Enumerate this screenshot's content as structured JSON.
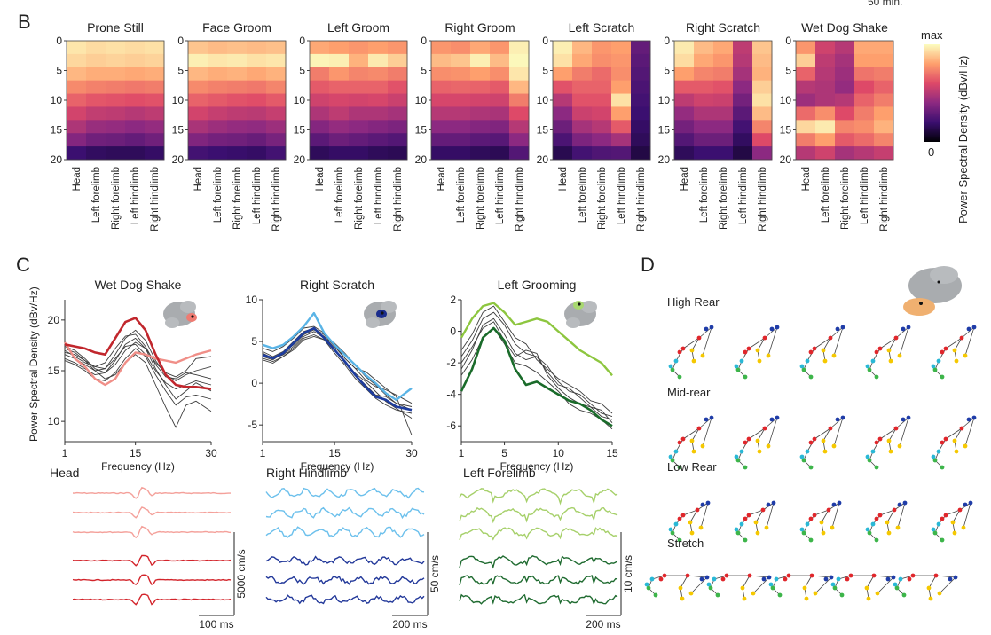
{
  "top_clip_text": "50 min.",
  "panel_letters": {
    "b": "B",
    "c": "C",
    "d": "D"
  },
  "panel_b": {
    "row_labels": [
      "Head",
      "Left forelimb",
      "Right forelimb",
      "Left hindlimb",
      "Right hindlimb"
    ],
    "y_ticks": [
      "0",
      "5",
      "10",
      "15",
      "20"
    ],
    "colorbar": {
      "max_label": "max",
      "min_label": "0",
      "axis_label": "Power Spectral Density (dBv/Hz)",
      "stops": [
        "#000004",
        "#3b0f70",
        "#8c2981",
        "#de4968",
        "#fe9f6d",
        "#fcfdbf"
      ]
    },
    "heatmaps": [
      {
        "title": "Prone Still",
        "cols": [
          [
            0.95,
            0.92,
            0.85,
            0.75,
            0.66,
            0.57,
            0.48,
            0.38,
            0.2
          ],
          [
            0.93,
            0.9,
            0.83,
            0.73,
            0.63,
            0.53,
            0.43,
            0.33,
            0.17
          ],
          [
            0.94,
            0.91,
            0.83,
            0.72,
            0.62,
            0.52,
            0.42,
            0.32,
            0.16
          ],
          [
            0.93,
            0.9,
            0.82,
            0.71,
            0.61,
            0.5,
            0.4,
            0.3,
            0.16
          ],
          [
            0.94,
            0.91,
            0.83,
            0.72,
            0.62,
            0.52,
            0.42,
            0.33,
            0.18
          ]
        ]
      },
      {
        "title": "Face Groom",
        "cols": [
          [
            0.88,
            0.97,
            0.85,
            0.75,
            0.66,
            0.57,
            0.47,
            0.37,
            0.22
          ],
          [
            0.86,
            0.95,
            0.83,
            0.73,
            0.64,
            0.54,
            0.44,
            0.34,
            0.2
          ],
          [
            0.87,
            0.96,
            0.84,
            0.72,
            0.62,
            0.52,
            0.42,
            0.33,
            0.19
          ],
          [
            0.86,
            0.94,
            0.82,
            0.71,
            0.61,
            0.51,
            0.41,
            0.31,
            0.18
          ],
          [
            0.87,
            0.95,
            0.84,
            0.74,
            0.64,
            0.54,
            0.44,
            0.35,
            0.22
          ]
        ]
      },
      {
        "title": "Left Groom",
        "cols": [
          [
            0.82,
            0.98,
            0.72,
            0.64,
            0.56,
            0.48,
            0.38,
            0.28,
            0.16
          ],
          [
            0.8,
            0.97,
            0.78,
            0.66,
            0.58,
            0.52,
            0.42,
            0.32,
            0.18
          ],
          [
            0.78,
            0.84,
            0.74,
            0.66,
            0.57,
            0.48,
            0.4,
            0.3,
            0.18
          ],
          [
            0.8,
            0.96,
            0.75,
            0.66,
            0.58,
            0.48,
            0.38,
            0.28,
            0.16
          ],
          [
            0.78,
            0.9,
            0.72,
            0.62,
            0.55,
            0.46,
            0.36,
            0.26,
            0.15
          ]
        ]
      },
      {
        "title": "Right Groom",
        "cols": [
          [
            0.78,
            0.86,
            0.76,
            0.66,
            0.58,
            0.5,
            0.4,
            0.3,
            0.18
          ],
          [
            0.76,
            0.88,
            0.77,
            0.67,
            0.58,
            0.5,
            0.4,
            0.3,
            0.18
          ],
          [
            0.82,
            0.97,
            0.8,
            0.66,
            0.57,
            0.48,
            0.38,
            0.28,
            0.16
          ],
          [
            0.78,
            0.86,
            0.76,
            0.64,
            0.56,
            0.47,
            0.37,
            0.27,
            0.15
          ],
          [
            0.97,
            0.99,
            0.95,
            0.85,
            0.72,
            0.6,
            0.5,
            0.4,
            0.26
          ]
        ]
      },
      {
        "title": "Left Scratch",
        "cols": [
          [
            0.97,
            0.94,
            0.8,
            0.62,
            0.5,
            0.4,
            0.32,
            0.24,
            0.14
          ],
          [
            0.85,
            0.82,
            0.72,
            0.66,
            0.62,
            0.55,
            0.46,
            0.36,
            0.22
          ],
          [
            0.78,
            0.76,
            0.68,
            0.66,
            0.62,
            0.57,
            0.5,
            0.4,
            0.25
          ],
          [
            0.8,
            0.78,
            0.76,
            0.8,
            0.94,
            0.8,
            0.64,
            0.46,
            0.26
          ],
          [
            0.3,
            0.28,
            0.26,
            0.24,
            0.22,
            0.2,
            0.18,
            0.16,
            0.12
          ]
        ]
      },
      {
        "title": "Right Scratch",
        "cols": [
          [
            0.96,
            0.93,
            0.8,
            0.64,
            0.52,
            0.42,
            0.34,
            0.26,
            0.16
          ],
          [
            0.86,
            0.82,
            0.74,
            0.64,
            0.56,
            0.48,
            0.4,
            0.32,
            0.2
          ],
          [
            0.82,
            0.78,
            0.72,
            0.62,
            0.55,
            0.48,
            0.4,
            0.32,
            0.2
          ],
          [
            0.52,
            0.5,
            0.46,
            0.4,
            0.34,
            0.28,
            0.22,
            0.17,
            0.12
          ],
          [
            0.88,
            0.86,
            0.84,
            0.9,
            0.94,
            0.86,
            0.74,
            0.6,
            0.4
          ]
        ]
      },
      {
        "title": "Wet Dog Shake",
        "cols": [
          [
            0.78,
            0.9,
            0.66,
            0.5,
            0.44,
            0.68,
            0.92,
            0.72,
            0.5
          ],
          [
            0.56,
            0.52,
            0.5,
            0.48,
            0.48,
            0.76,
            0.96,
            0.8,
            0.56
          ],
          [
            0.5,
            0.46,
            0.44,
            0.42,
            0.5,
            0.6,
            0.74,
            0.64,
            0.46
          ],
          [
            0.82,
            0.8,
            0.7,
            0.6,
            0.66,
            0.72,
            0.76,
            0.68,
            0.5
          ],
          [
            0.82,
            0.8,
            0.72,
            0.66,
            0.72,
            0.8,
            0.84,
            0.74,
            0.54
          ]
        ]
      }
    ]
  },
  "panel_c": {
    "y_axis_label": "Power Spectral Density (dBv/Hz)",
    "x_axis_label": "Frequency (Hz)",
    "spectra": [
      {
        "title": "Wet Dog Shake",
        "xlim": [
          1,
          30
        ],
        "ylim": [
          8,
          22
        ],
        "x_ticks": [
          "1",
          "15",
          "30"
        ],
        "x_tick_values": [
          1,
          15,
          30
        ],
        "y_ticks": [
          "10",
          "15",
          "20"
        ],
        "y_tick_values": [
          10,
          15,
          20
        ],
        "x": [
          1,
          3,
          5,
          7,
          9,
          11,
          13,
          15,
          17,
          19,
          21,
          23,
          25,
          27,
          30
        ],
        "gray": [
          [
            17.0,
            16.4,
            15.8,
            15.4,
            15.8,
            17.2,
            18.4,
            18.6,
            17.4,
            15.6,
            14.4,
            14.2,
            14.8,
            14.6,
            14.2
          ],
          [
            16.6,
            16.2,
            15.6,
            15.0,
            15.2,
            16.6,
            18.2,
            19.0,
            18.0,
            16.0,
            14.6,
            14.0,
            14.6,
            15.0,
            15.4
          ],
          [
            16.2,
            15.8,
            15.2,
            14.6,
            14.8,
            16.0,
            17.6,
            18.2,
            17.2,
            15.2,
            13.6,
            12.2,
            13.0,
            13.8,
            13.0
          ],
          [
            17.4,
            17.0,
            16.2,
            15.2,
            14.8,
            15.6,
            17.0,
            17.8,
            17.2,
            15.8,
            14.8,
            14.4,
            15.0,
            16.2,
            16.4
          ],
          [
            16.0,
            15.6,
            15.0,
            14.2,
            14.0,
            14.8,
            16.2,
            17.2,
            16.4,
            14.6,
            13.0,
            11.6,
            12.4,
            12.6,
            12.2
          ],
          [
            17.2,
            16.8,
            16.0,
            15.0,
            14.2,
            14.6,
            15.8,
            16.6,
            15.8,
            13.6,
            11.4,
            9.4,
            11.6,
            12.0,
            11.0
          ],
          [
            16.8,
            16.6,
            16.0,
            15.4,
            15.2,
            16.2,
            17.4,
            17.6,
            16.6,
            15.0,
            13.8,
            13.2,
            13.6,
            14.0,
            13.6
          ]
        ],
        "light": [
          17.8,
          16.2,
          15.4,
          14.2,
          13.6,
          14.2,
          15.8,
          16.8,
          16.6,
          16.2,
          16.0,
          15.8,
          16.2,
          16.6,
          17.0
        ],
        "dark": [
          17.6,
          17.4,
          17.2,
          16.8,
          16.6,
          18.2,
          19.8,
          20.2,
          19.0,
          16.6,
          14.6,
          13.6,
          13.4,
          13.4,
          13.2
        ],
        "light_color": "#f08f88",
        "dark_color": "#c1272d"
      },
      {
        "title": "Right Scratch",
        "xlim": [
          1,
          30
        ],
        "ylim": [
          -7,
          10
        ],
        "x_ticks": [
          "1",
          "15",
          "30"
        ],
        "x_tick_values": [
          1,
          15,
          30
        ],
        "y_ticks": [
          "-5",
          "0",
          "5",
          "10"
        ],
        "y_tick_values": [
          -5,
          0,
          5,
          10
        ],
        "x": [
          1,
          3,
          5,
          7,
          9,
          11,
          13,
          15,
          17,
          19,
          21,
          23,
          25,
          27,
          30
        ],
        "gray": [
          [
            3.8,
            3.2,
            3.8,
            5.0,
            6.2,
            6.6,
            5.8,
            4.4,
            3.0,
            1.8,
            0.4,
            -0.4,
            -0.8,
            -1.4,
            -2.4
          ],
          [
            3.2,
            2.8,
            3.6,
            4.6,
            5.8,
            6.4,
            5.6,
            4.2,
            2.4,
            1.0,
            -0.2,
            -1.4,
            -1.6,
            -2.4,
            -3.2
          ],
          [
            4.2,
            3.8,
            4.4,
            5.4,
            6.6,
            6.8,
            6.0,
            4.6,
            3.0,
            1.8,
            1.4,
            0.4,
            -0.6,
            -1.6,
            -6.2
          ],
          [
            2.8,
            2.4,
            3.2,
            4.0,
            5.2,
            5.6,
            5.2,
            4.0,
            2.6,
            1.2,
            0.2,
            -1.0,
            -2.2,
            -3.0,
            -4.2
          ],
          [
            3.6,
            3.0,
            3.4,
            4.4,
            5.6,
            6.2,
            5.4,
            4.8,
            3.6,
            2.2,
            0.8,
            -0.2,
            -1.4,
            -2.4,
            -2.8
          ],
          [
            3.0,
            2.6,
            3.2,
            4.2,
            5.4,
            5.8,
            5.2,
            3.6,
            2.2,
            0.6,
            -0.6,
            -1.8,
            -2.6,
            -3.2,
            -3.6
          ]
        ],
        "light": [
          4.6,
          4.2,
          4.6,
          5.6,
          6.8,
          8.4,
          6.0,
          4.6,
          3.4,
          2.2,
          1.0,
          0.0,
          -1.2,
          -2.0,
          -0.6
        ],
        "dark": [
          3.4,
          3.0,
          3.6,
          4.8,
          6.0,
          6.6,
          5.4,
          4.0,
          2.6,
          1.0,
          -0.4,
          -1.6,
          -2.0,
          -2.8,
          -3.2
        ],
        "light_color": "#5ab4e6",
        "dark_color": "#1d3c9e"
      },
      {
        "title": "Left Grooming",
        "xlim": [
          1,
          15
        ],
        "ylim": [
          -7,
          2
        ],
        "x_ticks": [
          "1",
          "5",
          "10",
          "15"
        ],
        "x_tick_values": [
          1,
          5,
          10,
          15
        ],
        "y_ticks": [
          "-6",
          "-4",
          "-2",
          "0",
          "2"
        ],
        "y_tick_values": [
          -6,
          -4,
          -2,
          0,
          2
        ],
        "x": [
          1,
          2,
          3,
          4,
          5,
          6,
          7,
          8,
          9,
          10,
          11,
          12,
          13,
          14,
          15
        ],
        "gray": [
          [
            -2.4,
            -1.2,
            0.4,
            0.8,
            -0.2,
            -1.4,
            -1.8,
            -1.6,
            -2.2,
            -3.2,
            -3.8,
            -4.0,
            -4.6,
            -5.2,
            -5.4
          ],
          [
            -1.6,
            -0.6,
            0.8,
            1.2,
            0.4,
            -0.8,
            -1.4,
            -1.6,
            -2.6,
            -3.4,
            -3.6,
            -4.2,
            -4.8,
            -5.0,
            -5.8
          ],
          [
            -2.0,
            -1.0,
            0.2,
            0.6,
            -0.6,
            -1.6,
            -1.2,
            -1.4,
            -2.8,
            -3.6,
            -4.2,
            -4.6,
            -4.8,
            -5.4,
            -5.6
          ],
          [
            -1.2,
            -0.2,
            1.2,
            1.6,
            0.6,
            -0.4,
            -0.8,
            -1.8,
            -2.4,
            -3.0,
            -3.4,
            -3.8,
            -4.4,
            -4.6,
            -5.2
          ],
          [
            -2.8,
            -1.8,
            -0.4,
            0.2,
            -0.8,
            -2.0,
            -2.2,
            -2.6,
            -3.2,
            -3.8,
            -4.6,
            -5.0,
            -5.2,
            -5.6,
            -6.2
          ]
        ],
        "light": [
          -0.4,
          0.8,
          1.6,
          1.8,
          1.2,
          0.4,
          0.6,
          0.8,
          0.6,
          0.0,
          -0.6,
          -1.2,
          -1.6,
          -2.0,
          -2.8
        ],
        "dark": [
          -3.8,
          -2.4,
          -0.4,
          0.2,
          -0.6,
          -2.4,
          -3.4,
          -3.2,
          -3.6,
          -4.0,
          -4.4,
          -4.6,
          -5.0,
          -5.6,
          -6.0
        ],
        "light_color": "#8dc63f",
        "dark_color": "#1a6b2a"
      }
    ],
    "traces": [
      {
        "label": "Head",
        "light_color": "#f4a09a",
        "dark_color": "#d3242b",
        "scale_v": "5000 cm/s",
        "scale_h": "100 ms"
      },
      {
        "label": "Right Hindlimb",
        "light_color": "#6cc0ec",
        "dark_color": "#23399a",
        "scale_v": "50 cm/s",
        "scale_h": "200 ms"
      },
      {
        "label": "Left Forelimb",
        "light_color": "#a6d06a",
        "dark_color": "#1f6b30",
        "scale_v": "10 cm/s",
        "scale_h": "200 ms"
      }
    ]
  },
  "panel_d": {
    "rows": [
      {
        "label": "High Rear"
      },
      {
        "label": "Mid-rear"
      },
      {
        "label": "Low Rear"
      },
      {
        "label": "Stretch"
      }
    ],
    "poses_per_row": 5,
    "joint_colors": {
      "head": "#1f3ca8",
      "spine": "#e0262b",
      "forelimb_right": "#f5c800",
      "forelimb_left": "#29b8d6",
      "hindlimb": "#3db54a"
    }
  }
}
